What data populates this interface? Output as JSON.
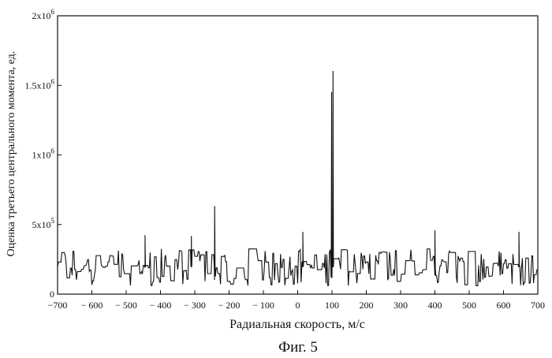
{
  "chart_data": {
    "type": "line",
    "xlabel": "Радиальная скорость, м/с",
    "ylabel": "Оценка третьего центрального момента, ед.",
    "caption": "Фиг. 5",
    "xlim": [
      -700,
      700
    ],
    "ylim": [
      0,
      2000000
    ],
    "x_ticks": [
      {
        "value": -700,
        "label": "−700"
      },
      {
        "value": -600,
        "label": "− 600"
      },
      {
        "value": -500,
        "label": "− 500"
      },
      {
        "value": -400,
        "label": "− 400"
      },
      {
        "value": -300,
        "label": "− 300"
      },
      {
        "value": -200,
        "label": "− 200"
      },
      {
        "value": -100,
        "label": "− 100"
      },
      {
        "value": 0,
        "label": "0"
      },
      {
        "value": 100,
        "label": "100"
      },
      {
        "value": 200,
        "label": "200"
      },
      {
        "value": 300,
        "label": "300"
      },
      {
        "value": 400,
        "label": "400"
      },
      {
        "value": 500,
        "label": "500"
      },
      {
        "value": 600,
        "label": "600"
      },
      {
        "value": 700,
        "label": "700"
      }
    ],
    "y_ticks": [
      {
        "value": 0,
        "label": "0",
        "base": "0",
        "exp": ""
      },
      {
        "value": 500000,
        "label": "5x10^5",
        "base": "5x10",
        "exp": "5"
      },
      {
        "value": 1000000,
        "label": "1x10^6",
        "base": "1x10",
        "exp": "6"
      },
      {
        "value": 1500000,
        "label": "1.5x10^6",
        "base": "1.5x10",
        "exp": "6"
      },
      {
        "value": 2000000,
        "label": "2x10^6",
        "base": "2x10",
        "exp": "6"
      }
    ],
    "grid": false,
    "line_color": "#111111",
    "noise_floor": {
      "x_range": [
        -700,
        700
      ],
      "y_min": 60000,
      "y_max": 330000
    },
    "peaks": [
      {
        "x": -445,
        "y": 420000
      },
      {
        "x": -310,
        "y": 415000
      },
      {
        "x": -242,
        "y": 630000
      },
      {
        "x": 15,
        "y": 445000
      },
      {
        "x": 99,
        "y": 1450000
      },
      {
        "x": 103,
        "y": 1600000
      },
      {
        "x": 400,
        "y": 455000
      },
      {
        "x": 645,
        "y": 445000
      }
    ]
  }
}
